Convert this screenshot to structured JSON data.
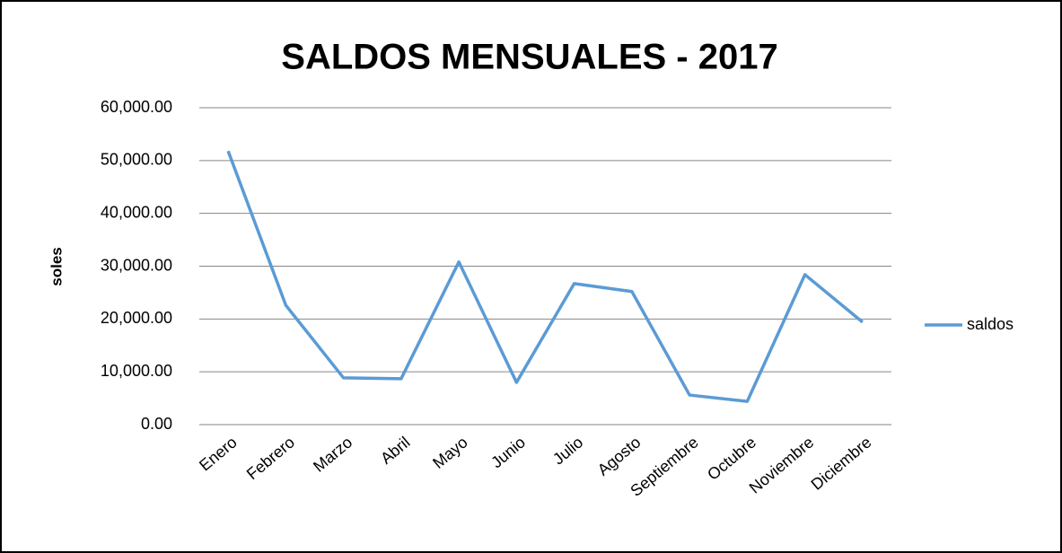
{
  "chart_data": {
    "type": "line",
    "title": "SALDOS MENSUALES - 2017",
    "y_label": "soles",
    "categories": [
      "Enero",
      "Febrero",
      "Marzo",
      "Abril",
      "Mayo",
      "Junio",
      "Julio",
      "Agosto",
      "Septiembre",
      "Octubre",
      "Noviembre",
      "Diciembre"
    ],
    "series": [
      {
        "name": "saldos",
        "color": "#5b9bd5",
        "values": [
          51800,
          22600,
          8850,
          8700,
          30800,
          8000,
          26700,
          25200,
          5600,
          4400,
          28400,
          19400
        ]
      }
    ],
    "ylim": [
      0,
      60000
    ],
    "yticks": [
      {
        "value": 0,
        "label": "0.00"
      },
      {
        "value": 10000,
        "label": "10,000.00"
      },
      {
        "value": 20000,
        "label": "20,000.00"
      },
      {
        "value": 30000,
        "label": "30,000.00"
      },
      {
        "value": 40000,
        "label": "40,000.00"
      },
      {
        "value": 50000,
        "label": "50,000.00"
      },
      {
        "value": 60000,
        "label": "60,000.00"
      }
    ],
    "grid": true,
    "legend": "right"
  }
}
